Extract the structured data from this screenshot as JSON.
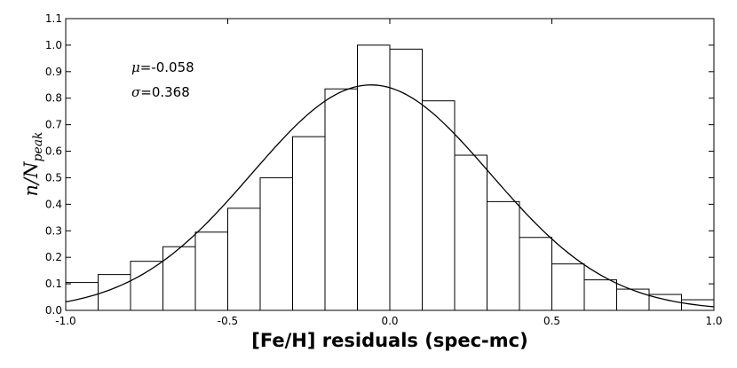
{
  "chart_data": {
    "type": "histogram",
    "xlabel": "[Fe/H] residuals (spec-mc)",
    "ylabel_main": "n/N",
    "ylabel_sub": "peak",
    "xlim": [
      -1.0,
      1.0
    ],
    "ylim": [
      0.0,
      1.1
    ],
    "xticks": [
      -1.0,
      -0.5,
      0.0,
      0.5,
      1.0
    ],
    "xtick_labels": [
      "-1.0",
      "-0.5",
      "0.0",
      "0.5",
      "1.0"
    ],
    "yticks": [
      0.0,
      0.1,
      0.2,
      0.3,
      0.4,
      0.5,
      0.6,
      0.7,
      0.8,
      0.9,
      1.0,
      1.1
    ],
    "ytick_labels": [
      "0.0",
      "0.1",
      "0.2",
      "0.3",
      "0.4",
      "0.5",
      "0.6",
      "0.7",
      "0.8",
      "0.9",
      "1.0",
      "1.1"
    ],
    "grid": false,
    "histogram": {
      "bin_edges": [
        -1.0,
        -0.9,
        -0.8,
        -0.7,
        -0.6,
        -0.5,
        -0.4,
        -0.3,
        -0.2,
        -0.1,
        0.0,
        0.1,
        0.2,
        0.3,
        0.4,
        0.5,
        0.6,
        0.7,
        0.8,
        0.9,
        1.0
      ],
      "values": [
        0.105,
        0.135,
        0.185,
        0.24,
        0.295,
        0.385,
        0.5,
        0.655,
        0.835,
        1.0,
        0.985,
        0.79,
        0.585,
        0.41,
        0.275,
        0.175,
        0.115,
        0.08,
        0.06,
        0.04
      ]
    },
    "gaussian_fit": {
      "mu": -0.058,
      "sigma": 0.368,
      "amplitude": 0.85
    },
    "annotations": {
      "mu_symbol": "μ",
      "mu_text": "=-0.058",
      "sigma_symbol": "σ",
      "sigma_text": "=0.368"
    }
  }
}
